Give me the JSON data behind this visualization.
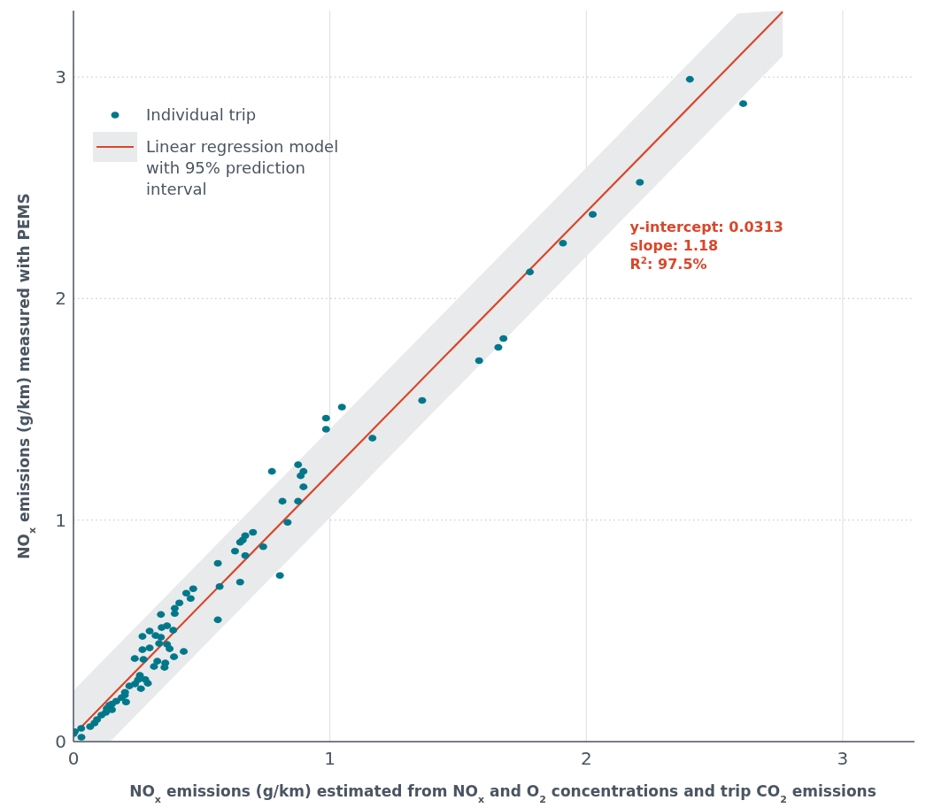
{
  "chart_data": {
    "type": "scatter",
    "xlabel": "NO$_{x}$ emissions (g/km) estimated from NO$_{x}$ and O$_{2}$ concentrations and trip CO$_{2}$ emissions",
    "ylabel": "NO$_{x}$ emissions (g/km) measured with PEMS",
    "xlim": [
      0,
      3.28
    ],
    "ylim": [
      0,
      3.3
    ],
    "xticks": [
      0,
      1,
      2,
      3
    ],
    "yticks": [
      0,
      1,
      2,
      3
    ],
    "grid": true,
    "legend": "top left",
    "annotations": [
      "y-intercept: 0.0313",
      "slope: 1.18",
      "R$^{2}$: 97.5%"
    ],
    "series": [
      {
        "name": "Individual trip",
        "color": "#00788a",
        "marker": "circle",
        "x": [
          2.404,
          2.612,
          2.209,
          2.025,
          1.909,
          1.78,
          1.36,
          1.677,
          1.657,
          1.582,
          1.166,
          1.047,
          0.985,
          0.985,
          0.876,
          0.897,
          0.886,
          0.897,
          0.774,
          0.815,
          0.876,
          0.835,
          0.805,
          0.74,
          0.7,
          0.67,
          0.66,
          0.65,
          0.63,
          0.67,
          0.65,
          0.563,
          0.57,
          0.563,
          0.467,
          0.44,
          0.457,
          0.413,
          0.395,
          0.395,
          0.341,
          0.365,
          0.344,
          0.389,
          0.297,
          0.269,
          0.32,
          0.341,
          0.334,
          0.365,
          0.375,
          0.297,
          0.269,
          0.43,
          0.392,
          0.239,
          0.273,
          0.327,
          0.358,
          0.314,
          0.355,
          0.259,
          0.252,
          0.29,
          0.218,
          0.263,
          0.201,
          0.188,
          0.167,
          0.205,
          0.14,
          0.15,
          0.126,
          0.109,
          0.092,
          0.082,
          0.065,
          0.0,
          0.031,
          0.13,
          0.15,
          0.2,
          0.24,
          0.28,
          0.005,
          0.03
        ],
        "values": [
          2.99,
          2.88,
          2.525,
          2.38,
          2.25,
          2.12,
          1.54,
          1.82,
          1.78,
          1.72,
          1.37,
          1.51,
          1.46,
          1.41,
          1.25,
          1.22,
          1.2,
          1.15,
          1.22,
          1.085,
          1.085,
          0.99,
          0.75,
          0.88,
          0.945,
          0.93,
          0.91,
          0.9,
          0.86,
          0.84,
          0.72,
          0.805,
          0.7,
          0.55,
          0.69,
          0.67,
          0.646,
          0.626,
          0.602,
          0.578,
          0.574,
          0.523,
          0.515,
          0.503,
          0.499,
          0.475,
          0.479,
          0.471,
          0.443,
          0.439,
          0.419,
          0.423,
          0.415,
          0.407,
          0.383,
          0.375,
          0.371,
          0.363,
          0.355,
          0.339,
          0.335,
          0.299,
          0.279,
          0.263,
          0.251,
          0.239,
          0.223,
          0.199,
          0.183,
          0.179,
          0.164,
          0.144,
          0.132,
          0.12,
          0.1,
          0.084,
          0.068,
          0.036,
          0.02,
          0.15,
          0.17,
          0.21,
          0.26,
          0.28,
          0.045,
          0.06
        ]
      },
      {
        "name": "Linear regression model with 95% prediction interval",
        "type": "line",
        "color": "#d9472b",
        "line_style": "solid",
        "x": [
          0,
          0.143,
          2.59,
          2.766
        ],
        "values": [
          0.03,
          0.2,
          3.087,
          3.295
        ],
        "lower": [
          0,
          0,
          2.887,
          3.095
        ],
        "upper": [
          0.231,
          0.4,
          3.287,
          3.3
        ]
      }
    ]
  }
}
